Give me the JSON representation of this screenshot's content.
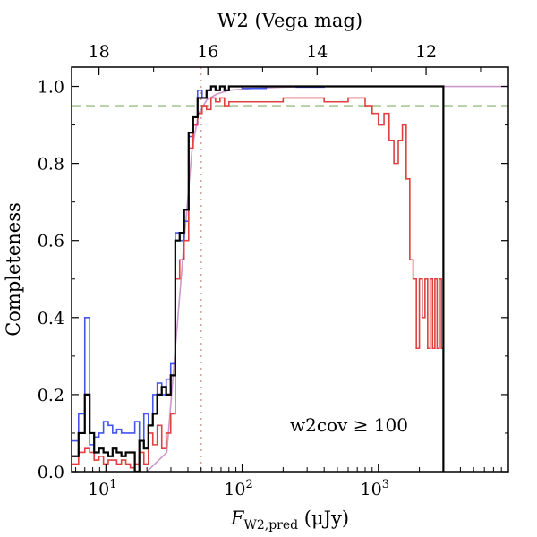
{
  "chart_data": {
    "type": "line",
    "xscale": "log",
    "xlim": [
      5.6,
      9000
    ],
    "ylim": [
      0,
      1.05
    ],
    "xlabel": "F_W2,pred (μJy)",
    "xlabel_parts": {
      "main": "F",
      "sub": "W2,pred",
      "unit": " (μJy)"
    },
    "ylabel": "Completeness",
    "top_axis_label": "W2 (Vega mag)",
    "x_ticks": [
      {
        "value": 10,
        "base": "10",
        "exp": "1"
      },
      {
        "value": 100,
        "base": "10",
        "exp": "2"
      },
      {
        "value": 1000,
        "base": "10",
        "exp": "3"
      }
    ],
    "y_ticks": [
      {
        "value": 0.0,
        "label": "0.0"
      },
      {
        "value": 0.2,
        "label": "0.2"
      },
      {
        "value": 0.4,
        "label": "0.4"
      },
      {
        "value": 0.6,
        "label": "0.6"
      },
      {
        "value": 0.8,
        "label": "0.8"
      },
      {
        "value": 1.0,
        "label": "1.0"
      }
    ],
    "top_ticks": [
      {
        "flux": 8.9,
        "label": "18"
      },
      {
        "flux": 56,
        "label": "16"
      },
      {
        "flux": 355,
        "label": "14"
      },
      {
        "flux": 2240,
        "label": "12"
      }
    ],
    "annotation": "w2cov ≥ 100",
    "reference_lines": [
      {
        "orientation": "horizontal",
        "value": 0.95,
        "style": "dashed",
        "color": "#a8c898"
      },
      {
        "orientation": "vertical",
        "value": 50,
        "style": "dotted",
        "color": "#d4a5a0"
      }
    ],
    "series": [
      {
        "color": "#cc99cc",
        "style": "smooth",
        "x": [
          20,
          28,
          32,
          38,
          43,
          48,
          55,
          65,
          80,
          120,
          200,
          400,
          1000,
          3000,
          9000
        ],
        "y": [
          0.0,
          0.05,
          0.3,
          0.62,
          0.84,
          0.93,
          0.965,
          0.98,
          0.99,
          0.995,
          0.998,
          1.0,
          1.0,
          1.0,
          1.0
        ]
      },
      {
        "color": "#4455ee",
        "style": "step",
        "x": [
          5.6,
          6.3,
          7.0,
          7.6,
          8.2,
          8.9,
          9.6,
          10.4,
          11.2,
          12.0,
          13.0,
          14.0,
          15.1,
          16.3,
          17.6,
          19.0,
          20.5,
          22.1,
          23.8,
          25.7,
          27.7,
          29.9,
          32.3,
          34.8,
          37.5,
          40.5,
          43.7,
          47.1,
          50.8,
          54.8,
          59.1,
          63.8,
          68.8,
          74.2,
          80,
          100,
          150,
          250,
          400,
          700,
          1200,
          2000,
          3000
        ],
        "y": [
          0.08,
          0.15,
          0.4,
          0.07,
          0.09,
          0.1,
          0.13,
          0.12,
          0.1,
          0.11,
          0.1,
          0.1,
          0.1,
          0.13,
          0.08,
          0.15,
          0.12,
          0.2,
          0.23,
          0.2,
          0.24,
          0.28,
          0.62,
          0.6,
          0.65,
          0.87,
          0.9,
          0.99,
          0.97,
          0.99,
          1.0,
          0.99,
          1.0,
          0.99,
          1.0,
          0.995,
          1.0,
          0.998,
          1.0,
          1.0,
          1.0,
          1.0,
          1.0
        ]
      },
      {
        "color": "#e04040",
        "style": "step",
        "x": [
          5.6,
          6.3,
          7.0,
          7.6,
          8.2,
          8.9,
          9.6,
          10.4,
          11.2,
          12.0,
          13.0,
          14.0,
          15.1,
          16.3,
          17.6,
          19.0,
          20.5,
          22.1,
          23.8,
          25.7,
          27.7,
          29.9,
          32.3,
          34.8,
          37.5,
          40.5,
          43.7,
          47.1,
          50.8,
          54.8,
          59.1,
          63.8,
          68.8,
          74.2,
          80,
          120,
          200,
          400,
          600,
          800,
          900,
          1000,
          1100,
          1200,
          1300,
          1400,
          1500,
          1600,
          1700,
          1800,
          1900,
          2000,
          2100,
          2200,
          2300,
          2400,
          2500,
          2600,
          2700,
          2800,
          2900,
          3000
        ],
        "y": [
          0.02,
          0.05,
          0.06,
          0.05,
          0.03,
          0.04,
          0.02,
          0.03,
          0.03,
          0.02,
          0.03,
          0.02,
          0.01,
          0.02,
          0.05,
          0.02,
          0.1,
          0.07,
          0.12,
          0.06,
          0.1,
          0.15,
          0.5,
          0.55,
          0.6,
          0.84,
          0.9,
          0.93,
          0.95,
          0.94,
          0.97,
          0.96,
          0.97,
          0.95,
          0.96,
          0.96,
          0.97,
          0.96,
          0.97,
          0.95,
          0.93,
          0.9,
          0.93,
          0.86,
          0.8,
          0.86,
          0.9,
          0.76,
          0.55,
          0.5,
          0.32,
          0.5,
          0.4,
          0.5,
          0.32,
          0.5,
          0.32,
          0.5,
          0.32,
          0.5,
          0.32,
          0.32
        ]
      },
      {
        "color": "#000000",
        "style": "step",
        "x": [
          5.6,
          6.3,
          7.0,
          7.6,
          8.2,
          8.9,
          9.6,
          10.4,
          11.2,
          12.0,
          13.0,
          14.0,
          15.1,
          16.3,
          17.6,
          19.0,
          20.5,
          22.1,
          23.8,
          25.7,
          27.7,
          29.9,
          32.3,
          34.8,
          37.5,
          40.5,
          43.7,
          47.1,
          50.8,
          54.8,
          59.1,
          63.8,
          68.8,
          74.2,
          80,
          100,
          150,
          250,
          400,
          800,
          1500,
          3000
        ],
        "y": [
          0.04,
          0.1,
          0.2,
          0.1,
          0.05,
          0.06,
          0.05,
          0.04,
          0.06,
          0.05,
          0.04,
          0.05,
          0.05,
          0.0,
          0.08,
          0.06,
          0.12,
          0.15,
          0.2,
          0.22,
          0.2,
          0.25,
          0.6,
          0.62,
          0.68,
          0.88,
          0.92,
          0.97,
          0.97,
          0.99,
          1.0,
          0.99,
          1.0,
          0.99,
          1.0,
          1.0,
          1.0,
          1.0,
          1.0,
          1.0,
          1.0,
          1.0
        ],
        "drop_to": 0.0
      }
    ]
  }
}
